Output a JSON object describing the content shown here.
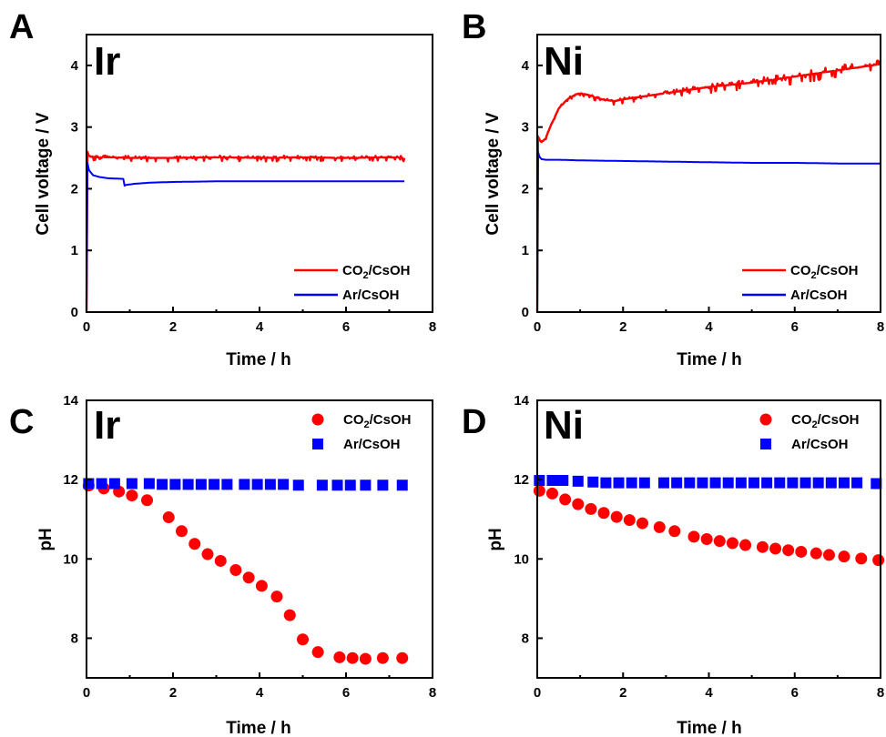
{
  "chart_data": [
    {
      "panel": "A",
      "type": "line",
      "label": "Ir",
      "xlabel": "Time / h",
      "ylabel": "Cell voltage / V",
      "xlim": [
        0,
        8
      ],
      "ylim": [
        0,
        4.5
      ],
      "xticks": [
        0,
        2,
        4,
        6,
        8
      ],
      "yticks": [
        0,
        1,
        2,
        3,
        4
      ],
      "legend_position": "bottom-right",
      "series": [
        {
          "name": "CO2/CsOH",
          "color": "#ff0000",
          "x": [
            0,
            0.02,
            0.05,
            0.1,
            0.3,
            0.6,
            1,
            2,
            3,
            4,
            5,
            6,
            7,
            7.35
          ],
          "y": [
            0,
            2.6,
            2.54,
            2.52,
            2.51,
            2.51,
            2.5,
            2.5,
            2.51,
            2.5,
            2.51,
            2.5,
            2.51,
            2.5
          ],
          "noise": 0.06
        },
        {
          "name": "Ar/CsOH",
          "color": "#0000ff",
          "x": [
            0,
            0.02,
            0.06,
            0.15,
            0.3,
            0.5,
            0.85,
            0.88,
            0.9,
            1.1,
            1.5,
            2,
            3,
            4,
            5,
            6,
            7,
            7.35
          ],
          "y": [
            0,
            2.42,
            2.3,
            2.22,
            2.19,
            2.17,
            2.16,
            2.05,
            2.06,
            2.08,
            2.1,
            2.11,
            2.12,
            2.12,
            2.12,
            2.12,
            2.12,
            2.12
          ],
          "noise": 0
        }
      ]
    },
    {
      "panel": "B",
      "type": "line",
      "label": "Ni",
      "xlabel": "Time / h",
      "ylabel": "Cell voltage / V",
      "xlim": [
        0,
        8
      ],
      "ylim": [
        0,
        4.5
      ],
      "xticks": [
        0,
        2,
        4,
        6,
        8
      ],
      "yticks": [
        0,
        1,
        2,
        3,
        4
      ],
      "legend_position": "bottom-right",
      "series": [
        {
          "name": "CO2/CsOH",
          "color": "#ff0000",
          "x": [
            0,
            0.02,
            0.05,
            0.1,
            0.2,
            0.3,
            0.5,
            0.7,
            0.9,
            1.0,
            1.2,
            1.5,
            1.8,
            2,
            3,
            4,
            5,
            6,
            7,
            8
          ],
          "y": [
            0,
            2.85,
            2.8,
            2.75,
            2.82,
            3.0,
            3.3,
            3.45,
            3.53,
            3.55,
            3.52,
            3.45,
            3.42,
            3.45,
            3.55,
            3.65,
            3.72,
            3.82,
            3.92,
            4.02
          ],
          "noise": 0.15
        },
        {
          "name": "Ar/CsOH",
          "color": "#0000ff",
          "x": [
            0,
            0.02,
            0.05,
            0.1,
            0.2,
            0.5,
            1,
            2,
            3,
            4,
            5,
            6,
            7,
            8
          ],
          "y": [
            0,
            2.6,
            2.52,
            2.48,
            2.47,
            2.47,
            2.46,
            2.45,
            2.44,
            2.43,
            2.42,
            2.42,
            2.41,
            2.41
          ],
          "noise": 0
        }
      ]
    },
    {
      "panel": "C",
      "type": "scatter",
      "label": "Ir",
      "xlabel": "Time / h",
      "ylabel": "pH",
      "xlim": [
        0,
        8
      ],
      "ylim": [
        7,
        14
      ],
      "xticks": [
        0,
        2,
        4,
        6,
        8
      ],
      "yticks": [
        8,
        10,
        12,
        14
      ],
      "legend_position": "top-right",
      "series": [
        {
          "name": "CO2/CsOH",
          "color": "#ff0000",
          "marker": "circle",
          "x": [
            0.05,
            0.4,
            0.75,
            1.05,
            1.4,
            1.9,
            2.2,
            2.5,
            2.8,
            3.1,
            3.45,
            3.75,
            4.05,
            4.4,
            4.7,
            5.0,
            5.35,
            5.85,
            6.15,
            6.45,
            6.85,
            7.3
          ],
          "y": [
            11.85,
            11.78,
            11.7,
            11.6,
            11.48,
            11.05,
            10.7,
            10.38,
            10.12,
            9.95,
            9.72,
            9.53,
            9.32,
            9.05,
            8.58,
            7.97,
            7.65,
            7.52,
            7.5,
            7.48,
            7.5,
            7.5
          ]
        },
        {
          "name": "Ar/CsOH",
          "color": "#0000ff",
          "marker": "square",
          "x": [
            0.05,
            0.35,
            0.65,
            1.05,
            1.45,
            1.75,
            2.05,
            2.35,
            2.65,
            2.95,
            3.25,
            3.65,
            3.95,
            4.25,
            4.55,
            4.9,
            5.45,
            5.8,
            6.1,
            6.45,
            6.85,
            7.3
          ],
          "y": [
            11.9,
            11.9,
            11.9,
            11.9,
            11.9,
            11.88,
            11.88,
            11.88,
            11.88,
            11.88,
            11.88,
            11.88,
            11.88,
            11.88,
            11.88,
            11.86,
            11.86,
            11.86,
            11.86,
            11.86,
            11.86,
            11.86
          ]
        }
      ]
    },
    {
      "panel": "D",
      "type": "scatter",
      "label": "Ni",
      "xlabel": "Time / h",
      "ylabel": "pH",
      "xlim": [
        0,
        8
      ],
      "ylim": [
        7,
        14
      ],
      "xticks": [
        0,
        2,
        4,
        6,
        8
      ],
      "yticks": [
        8,
        10,
        12,
        14
      ],
      "legend_position": "top-right",
      "series": [
        {
          "name": "CO2/CsOH",
          "color": "#ff0000",
          "marker": "circle",
          "x": [
            0.05,
            0.35,
            0.65,
            0.95,
            1.25,
            1.55,
            1.85,
            2.15,
            2.45,
            2.85,
            3.2,
            3.65,
            3.95,
            4.25,
            4.55,
            4.85,
            5.25,
            5.55,
            5.85,
            6.15,
            6.5,
            6.8,
            7.15,
            7.55,
            7.95
          ],
          "y": [
            11.72,
            11.65,
            11.5,
            11.38,
            11.26,
            11.16,
            11.06,
            10.98,
            10.9,
            10.8,
            10.7,
            10.56,
            10.5,
            10.45,
            10.4,
            10.35,
            10.3,
            10.26,
            10.22,
            10.18,
            10.14,
            10.1,
            10.06,
            10.01,
            9.97
          ]
        },
        {
          "name": "Ar/CsOH",
          "color": "#0000ff",
          "marker": "square",
          "x": [
            0.05,
            0.35,
            0.6,
            0.95,
            1.3,
            1.6,
            1.9,
            2.2,
            2.5,
            2.95,
            3.25,
            3.55,
            3.85,
            4.15,
            4.45,
            4.75,
            5.05,
            5.35,
            5.65,
            5.95,
            6.25,
            6.55,
            6.85,
            7.15,
            7.45,
            7.9
          ],
          "y": [
            11.98,
            11.98,
            11.98,
            11.96,
            11.94,
            11.92,
            11.92,
            11.92,
            11.92,
            11.92,
            11.92,
            11.92,
            11.92,
            11.92,
            11.92,
            11.92,
            11.92,
            11.92,
            11.92,
            11.92,
            11.92,
            11.92,
            11.92,
            11.92,
            11.92,
            11.9
          ]
        }
      ]
    }
  ]
}
